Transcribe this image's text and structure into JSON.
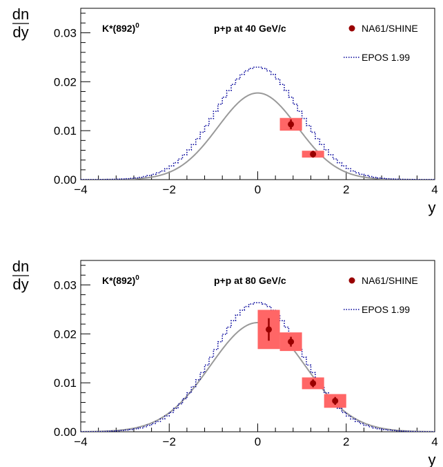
{
  "chart_data": [
    {
      "type": "scatter",
      "particle_label": "K*(892)",
      "particle_superscript": "0",
      "energy_label": "p+p at 40 GeV/c",
      "ylabel_top": "dn",
      "ylabel_bottom": "dy",
      "xlabel": "y",
      "xlim": [
        -4,
        4
      ],
      "ylim": [
        0,
        0.035
      ],
      "xticks": [
        -4,
        -2,
        0,
        2,
        4
      ],
      "xtick_labels": [
        "−4",
        "−2",
        "0",
        "2",
        "4"
      ],
      "yticks": [
        0,
        0.01,
        0.02,
        0.03
      ],
      "ytick_labels": [
        "0.00",
        "0.01",
        "0.02",
        "0.03"
      ],
      "legend": {
        "placement": "top-right",
        "entries": [
          "NA61/SHINE",
          "EPOS 1.99"
        ]
      },
      "colors": {
        "data": "#990000",
        "syst": "#ff6666",
        "gauss": "#999999",
        "epos": "#000099"
      },
      "series": [
        {
          "name": "NA61/SHINE",
          "points": [
            {
              "x": 0.75,
              "y": 0.0113,
              "stat": 0.001,
              "xsys": 0.25,
              "ysys": 0.0013
            },
            {
              "x": 1.25,
              "y": 0.0052,
              "stat": 0.0007,
              "xsys": 0.25,
              "ysys": 0.0007
            }
          ]
        },
        {
          "name": "EPOS 1.99",
          "shape": "gaussian",
          "amplitude": 0.023,
          "sigma": 0.95,
          "center": 0
        }
      ],
      "gauss_fit": {
        "amplitude": 0.0177,
        "sigma": 0.9,
        "center": 0
      }
    },
    {
      "type": "scatter",
      "particle_label": "K*(892)",
      "particle_superscript": "0",
      "energy_label": "p+p at 80 GeV/c",
      "ylabel_top": "dn",
      "ylabel_bottom": "dy",
      "xlabel": "y",
      "xlim": [
        -4,
        4
      ],
      "ylim": [
        0,
        0.035
      ],
      "xticks": [
        -4,
        -2,
        0,
        2,
        4
      ],
      "xtick_labels": [
        "−4",
        "−2",
        "0",
        "2",
        "4"
      ],
      "yticks": [
        0,
        0.01,
        0.02,
        0.03
      ],
      "ytick_labels": [
        "0.00",
        "0.01",
        "0.02",
        "0.03"
      ],
      "legend": {
        "placement": "top-right",
        "entries": [
          "NA61/SHINE",
          "EPOS 1.99"
        ]
      },
      "colors": {
        "data": "#990000",
        "syst": "#ff6666",
        "gauss": "#999999",
        "epos": "#000099"
      },
      "series": [
        {
          "name": "NA61/SHINE",
          "points": [
            {
              "x": 0.25,
              "y": 0.0209,
              "stat": 0.0023,
              "xsys": 0.25,
              "ysys": 0.004
            },
            {
              "x": 0.75,
              "y": 0.0184,
              "stat": 0.001,
              "xsys": 0.25,
              "ysys": 0.0019
            },
            {
              "x": 1.25,
              "y": 0.0099,
              "stat": 0.0008,
              "xsys": 0.25,
              "ysys": 0.0012
            },
            {
              "x": 1.75,
              "y": 0.0063,
              "stat": 0.0008,
              "xsys": 0.25,
              "ysys": 0.0014
            }
          ]
        },
        {
          "name": "EPOS 1.99",
          "shape": "gaussian",
          "amplitude": 0.0264,
          "sigma": 1.0,
          "center": 0
        }
      ],
      "gauss_fit": {
        "amplitude": 0.0223,
        "sigma": 1.07,
        "center": 0
      }
    }
  ]
}
